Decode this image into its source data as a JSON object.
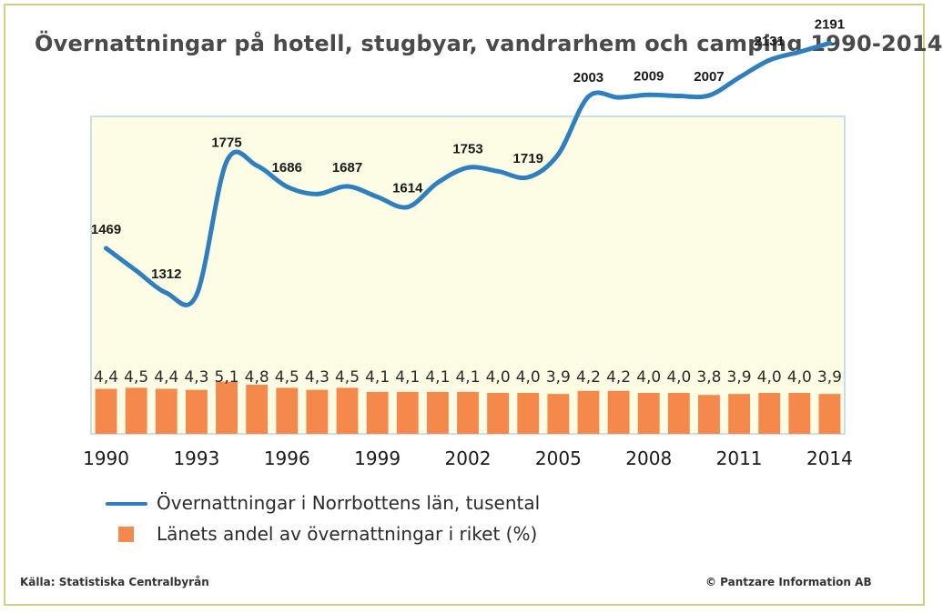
{
  "title": "Övernattningar på hotell, stugbyar, vandrarhem och camping 1990-2014",
  "source": "Källa: Statistiska Centralbyrån",
  "copyright": "© Pantzare Information AB",
  "colors": {
    "plot_background": "#fdfde6",
    "line": "#2f7fbf",
    "bar": "#f5894b",
    "border": "#cfcf86"
  },
  "chart_data": {
    "type": "line+bar",
    "x": [
      1990,
      1991,
      1992,
      1993,
      1994,
      1995,
      1996,
      1997,
      1998,
      1999,
      2000,
      2001,
      2002,
      2003,
      2004,
      2005,
      2006,
      2007,
      2008,
      2009,
      2010,
      2011,
      2012,
      2013,
      2014
    ],
    "x_tick_labels": [
      "1990",
      "1993",
      "1996",
      "1999",
      "2002",
      "2005",
      "2008",
      "2011",
      "2014"
    ],
    "series": [
      {
        "name": "Övernattningar i Norrbottens län, tusental",
        "type": "line",
        "values": [
          1469,
          1390,
          1312,
          1305,
          1775,
          1760,
          1686,
          1660,
          1687,
          1650,
          1614,
          1700,
          1753,
          1740,
          1719,
          1800,
          2003,
          2000,
          2009,
          2005,
          2007,
          2070,
          2131,
          2160,
          2191
        ],
        "labeled_points": [
          {
            "x": 1990,
            "label": "1469"
          },
          {
            "x": 1992,
            "label": "1312"
          },
          {
            "x": 1994,
            "label": "1775"
          },
          {
            "x": 1996,
            "label": "1686"
          },
          {
            "x": 1998,
            "label": "1687"
          },
          {
            "x": 2000,
            "label": "1614"
          },
          {
            "x": 2002,
            "label": "1753"
          },
          {
            "x": 2004,
            "label": "1719"
          },
          {
            "x": 2006,
            "label": "2003"
          },
          {
            "x": 2008,
            "label": "2009"
          },
          {
            "x": 2010,
            "label": "2007"
          },
          {
            "x": 2012,
            "label": "2131"
          },
          {
            "x": 2014,
            "label": "2191"
          }
        ]
      },
      {
        "name": "Länets andel av övernattningar i riket (%)",
        "type": "bar",
        "values": [
          4.4,
          4.5,
          4.4,
          4.3,
          5.1,
          4.8,
          4.5,
          4.3,
          4.5,
          4.1,
          4.1,
          4.1,
          4.1,
          4.0,
          4.0,
          3.9,
          4.2,
          4.2,
          4.0,
          4.0,
          3.8,
          3.9,
          4.0,
          4.0,
          3.9
        ],
        "labels": [
          "4,4",
          "4,5",
          "4,4",
          "4,3",
          "5,1",
          "4,8",
          "4,5",
          "4,3",
          "4,5",
          "4,1",
          "4,1",
          "4,1",
          "4,1",
          "4,0",
          "4,0",
          "3,9",
          "4,2",
          "4,2",
          "4,0",
          "4,0",
          "3,8",
          "3,9",
          "4,0",
          "4,0",
          "3,9"
        ]
      }
    ],
    "legend_placement": "bottom",
    "grid": false
  }
}
